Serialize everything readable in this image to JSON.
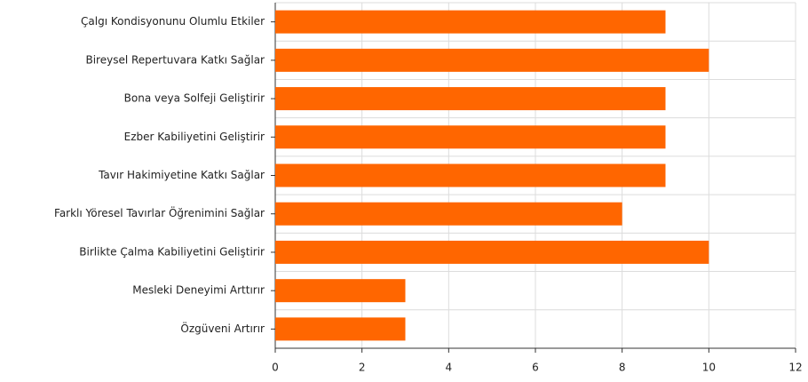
{
  "chart_data": {
    "type": "bar",
    "categories": [
      "Çalgı Kondisyonunu Olumlu Etkiler",
      "Bireysel Repertuvara Katkı Sağlar",
      "Bona veya Solfeji Geliştirir",
      "Ezber Kabiliyetini Geliştirir",
      "Tavır Hakimiyetine Katkı Sağlar",
      "Farklı Yöresel Tavırlar Öğrenimini Sağlar",
      "Birlikte Çalma Kabiliyetini Geliştirir",
      "Mesleki Deneyimi Arttırır",
      "Özgüveni Artırır"
    ],
    "values": [
      9,
      10,
      9,
      9,
      9,
      8,
      10,
      3,
      3
    ],
    "color": "#ff6600",
    "xlim": [
      0,
      12
    ],
    "xticks": [
      0,
      2,
      4,
      6,
      8,
      10,
      12
    ],
    "grid": true
  }
}
